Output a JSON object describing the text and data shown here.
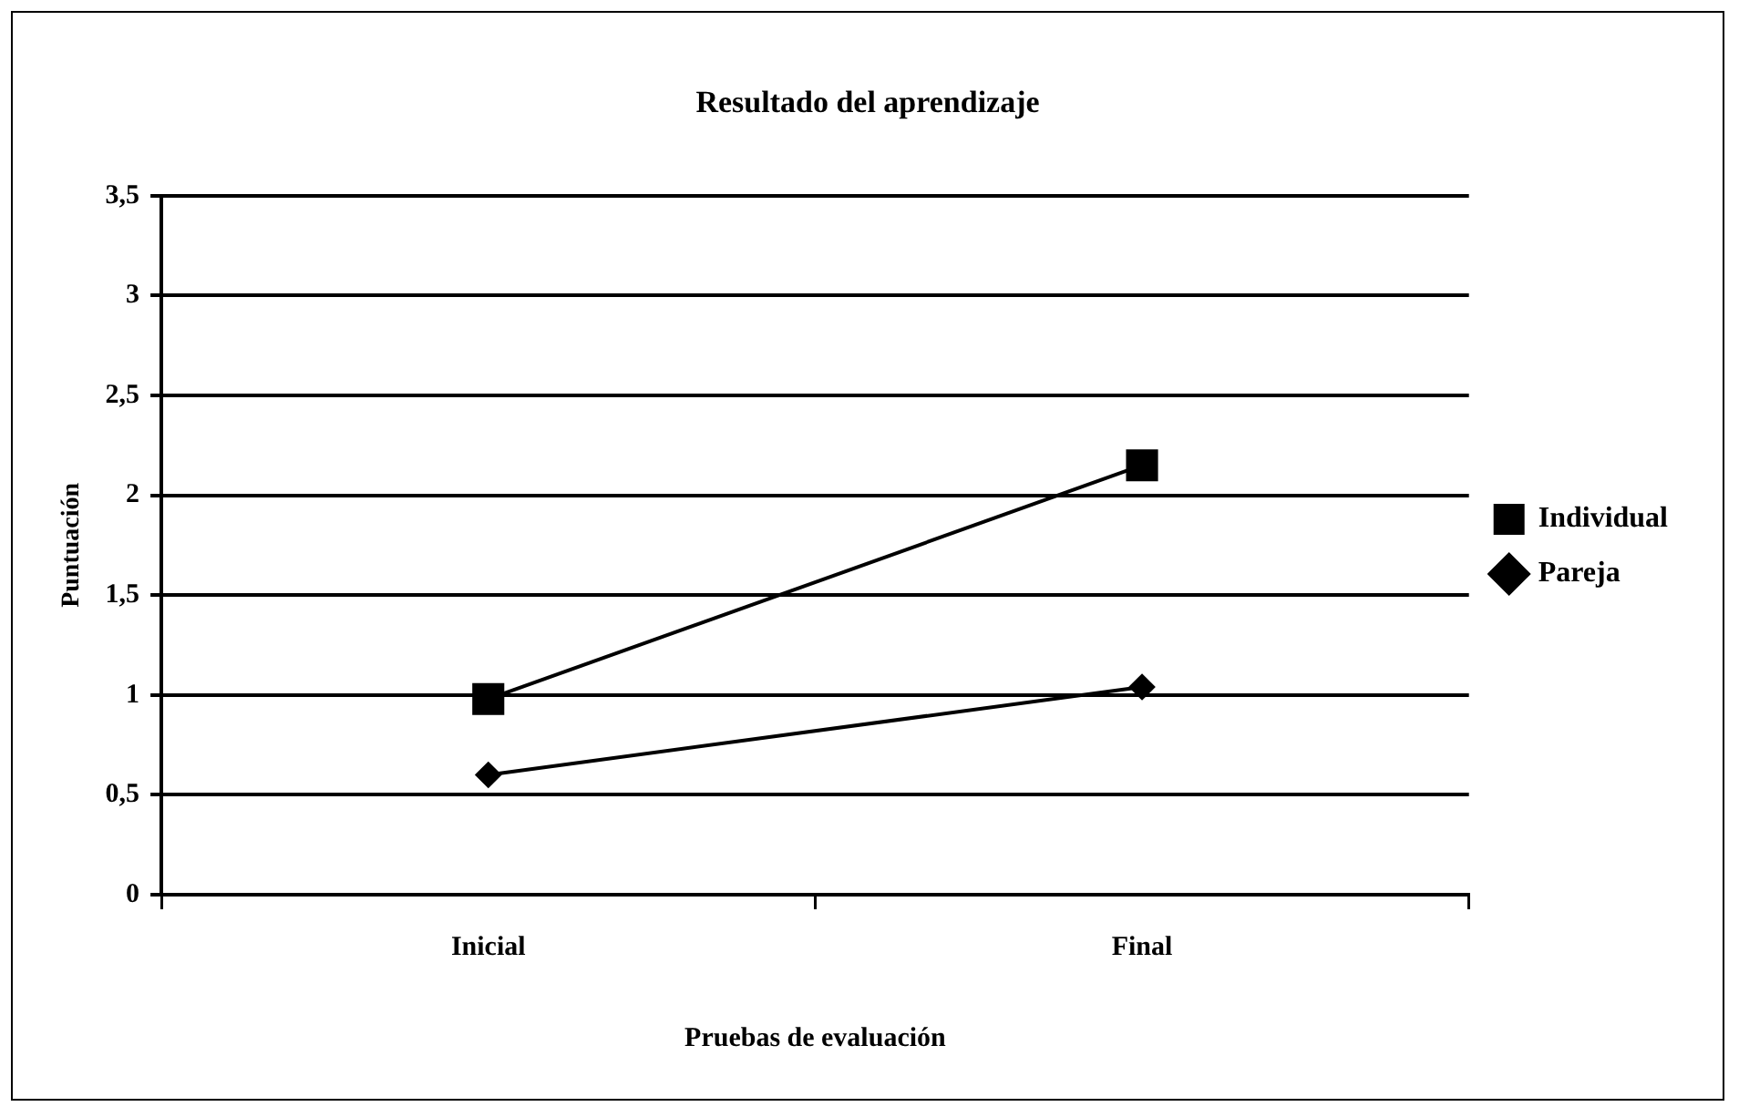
{
  "chart_data": {
    "type": "line",
    "title": "Resultado del aprendizaje",
    "xlabel": "Pruebas de evaluación",
    "ylabel": "Puntuación",
    "categories": [
      "Inicial",
      "Final"
    ],
    "series": [
      {
        "name": "Individual",
        "color": "#000000",
        "marker": "square",
        "values": [
          0.98,
          2.15
        ]
      },
      {
        "name": "Pareja",
        "color": "#000000",
        "marker": "diamond",
        "values": [
          0.6,
          1.04
        ]
      }
    ],
    "ylim": [
      0,
      3.5
    ],
    "yticks": [
      {
        "value": 0,
        "label": "0"
      },
      {
        "value": 0.5,
        "label": "0,5"
      },
      {
        "value": 1,
        "label": "1"
      },
      {
        "value": 1.5,
        "label": "1,5"
      },
      {
        "value": 2,
        "label": "2"
      },
      {
        "value": 2.5,
        "label": "2,5"
      },
      {
        "value": 3,
        "label": "3"
      },
      {
        "value": 3.5,
        "label": "3,5"
      }
    ],
    "grid": "y",
    "legend": "right",
    "line_style": "solid"
  }
}
